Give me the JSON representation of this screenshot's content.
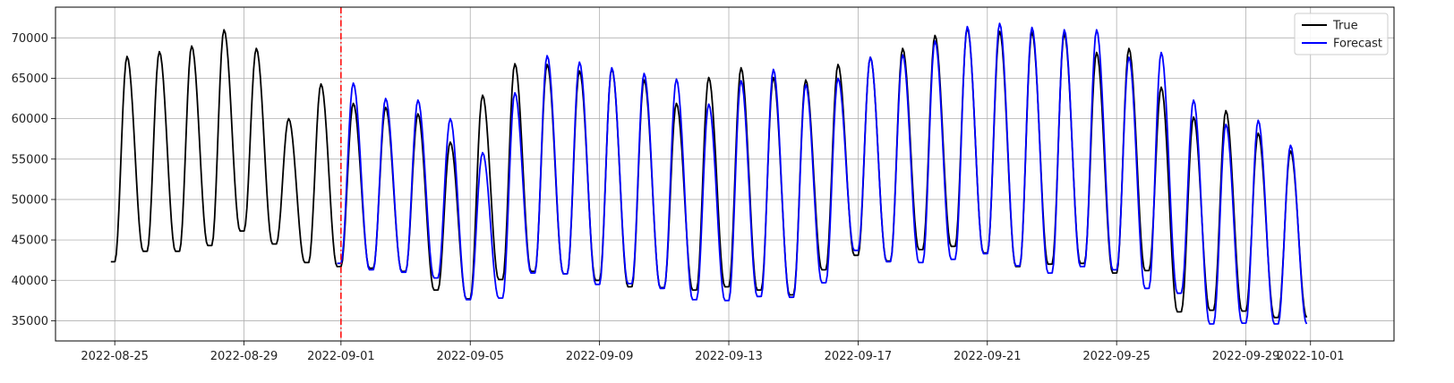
{
  "chart_data": {
    "type": "line",
    "x_start": "2022-08-25",
    "x_end": "2022-10-01",
    "forecast_start": "2022-09-01",
    "xlim": [
      "2022-08-23 04:00",
      "2022-10-03 14:00"
    ],
    "ylim": [
      32500,
      73800
    ],
    "grid": true,
    "legend_position": "top-right",
    "x_ticks": [
      "2022-08-25",
      "2022-08-29",
      "2022-09-01",
      "2022-09-05",
      "2022-09-09",
      "2022-09-13",
      "2022-09-17",
      "2022-09-21",
      "2022-09-25",
      "2022-09-29",
      "2022-10-01"
    ],
    "y_ticks": [
      35000,
      40000,
      45000,
      50000,
      55000,
      60000,
      65000,
      70000
    ],
    "vline_color": "#ff0000",
    "series": [
      {
        "name": "True",
        "color": "#000000",
        "daily_peaks": [
          67700,
          68300,
          69000,
          71000,
          68700,
          60000,
          64300,
          61900,
          61400,
          60600,
          57100,
          62900,
          66800,
          66700,
          65900,
          66200,
          64800,
          61900,
          65100,
          66300,
          65100,
          64800,
          66700,
          67600,
          68700,
          70300,
          71200,
          70800,
          70700,
          70500,
          68200,
          68700,
          63900,
          60200,
          61000,
          58200,
          56000
        ],
        "daily_troughs": [
          42300,
          43600,
          43600,
          44300,
          46100,
          44500,
          42200,
          41700,
          41500,
          41100,
          38800,
          37700,
          40100,
          41100,
          40800,
          40000,
          39200,
          39100,
          38800,
          39200,
          38800,
          38200,
          41300,
          43100,
          42400,
          43800,
          44200,
          43400,
          41700,
          42000,
          42100,
          40900,
          41200,
          36100,
          36300,
          36200,
          35400
        ]
      },
      {
        "name": "Forecast",
        "color": "#0000ff",
        "daily_peaks": [
          64400,
          62500,
          62300,
          60000,
          55800,
          63200,
          67800,
          67000,
          66300,
          65600,
          64900,
          61800,
          64700,
          66100,
          64200,
          65000,
          67600,
          67900,
          69600,
          71400,
          71800,
          71300,
          71000,
          71000,
          67600,
          68200,
          62300,
          59300,
          59800,
          56700
        ],
        "daily_troughs": [
          42100,
          41300,
          41000,
          40300,
          37600,
          37800,
          40900,
          40800,
          39500,
          39600,
          39000,
          37600,
          37500,
          38000,
          37900,
          39700,
          43700,
          42300,
          42200,
          42600,
          43300,
          41800,
          40900,
          41700,
          41300,
          39000,
          38400,
          34600,
          34700,
          34600
        ]
      }
    ]
  }
}
